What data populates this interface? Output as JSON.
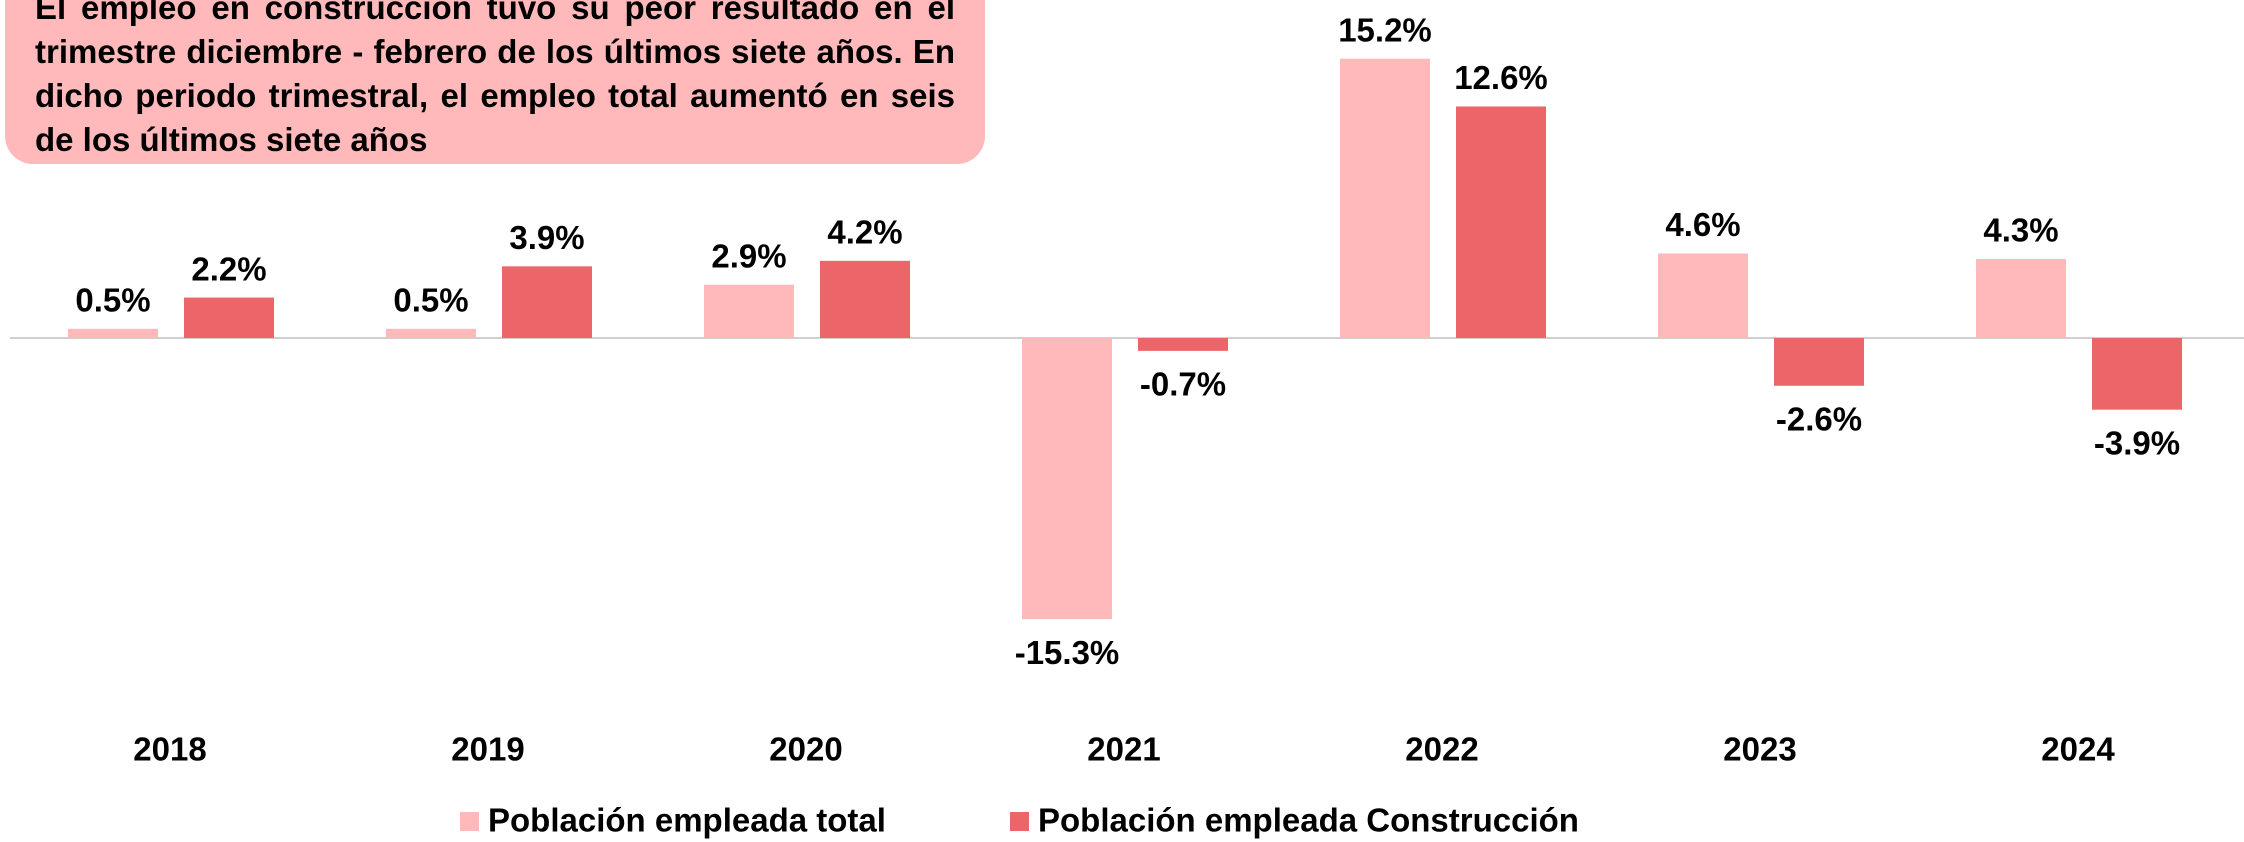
{
  "chart_data": {
    "type": "bar",
    "annotation": "El empleo en construcción tuvo su peor resultado en el trimestre diciembre - febrero de los últimos siete años. En dicho periodo trimestral, el empleo total aumentó en seis de los últimos siete años",
    "categories": [
      "2018",
      "2019",
      "2020",
      "2021",
      "2022",
      "2023",
      "2024"
    ],
    "series": [
      {
        "name": "Población empleada total",
        "color": "#ffb9bb",
        "values": [
          0.5,
          0.5,
          2.9,
          -15.3,
          15.2,
          4.6,
          4.3
        ],
        "value_labels": [
          "0.5%",
          "0.5%",
          "2.9%",
          "-15.3%",
          "15.2%",
          "4.6%",
          "4.3%"
        ]
      },
      {
        "name": "Población empleada Construcción",
        "color": "#ec6568",
        "values": [
          2.2,
          3.9,
          4.2,
          -0.7,
          12.6,
          -2.6,
          -3.9
        ],
        "value_labels": [
          "2.2%",
          "3.9%",
          "4.2%",
          "-0.7%",
          "12.6%",
          "-2.6%",
          "-3.9%"
        ]
      }
    ],
    "ylim": [
      -16,
      16
    ],
    "legend": "bottom"
  }
}
